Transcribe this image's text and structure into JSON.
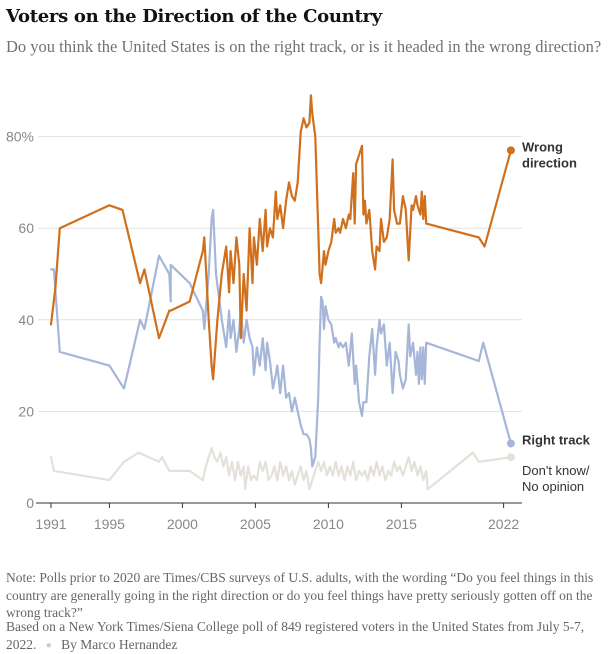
{
  "header": {
    "title": "Voters on the Direction of the Country",
    "subtitle": "Do you think the United States is on the right track, or is it headed in the wrong direction?"
  },
  "footer": {
    "note": "Note: Polls prior to 2020 are Times/CBS surveys of U.S. adults, with the wording “Do you feel things in this country are generally going in the right direction or do you feel things have pretty seriously gotten off on the wrong track?”",
    "source": "Based on a New York Times/Siena College poll of 849 registered voters in the United States from July 5-7, 2022.",
    "byline": "By Marco Hernandez",
    "separator": "●"
  },
  "chart_data": {
    "type": "line",
    "title": "Voters on the Direction of the Country",
    "xlabel": "",
    "ylabel": "",
    "xlim": [
      1990.0,
      2023.0
    ],
    "ylim": [
      0,
      80
    ],
    "grid": true,
    "x_ticks": [
      1991,
      1995,
      2000,
      2005,
      2010,
      2015,
      2022
    ],
    "x_tick_labels": [
      "1991",
      "1995",
      "2000",
      "2005",
      "2010",
      "2015",
      "2022"
    ],
    "y_ticks": [
      0,
      20,
      40,
      60,
      80
    ],
    "y_tick_labels": [
      "0",
      "20",
      "40",
      "60",
      "80%"
    ],
    "legend": "direct labels at right end of each line",
    "series": [
      {
        "name": "Wrong direction",
        "label_lines": [
          "Wrong",
          "direction"
        ],
        "color": "#d0701d",
        "end_value": 77,
        "points": [
          [
            1991.0,
            39
          ],
          [
            1991.3,
            47
          ],
          [
            1991.6,
            60
          ],
          [
            1995.0,
            65
          ],
          [
            1995.9,
            64
          ],
          [
            1997.1,
            48
          ],
          [
            1997.4,
            51
          ],
          [
            1998.4,
            36
          ],
          [
            1999.1,
            42
          ],
          [
            1999.2,
            42
          ],
          [
            2000.5,
            44
          ],
          [
            2001.4,
            55
          ],
          [
            2001.5,
            58
          ],
          [
            2001.8,
            40
          ],
          [
            2002.0,
            30
          ],
          [
            2002.1,
            27
          ],
          [
            2002.4,
            40
          ],
          [
            2002.7,
            50
          ],
          [
            2003.0,
            56
          ],
          [
            2003.2,
            46
          ],
          [
            2003.3,
            55
          ],
          [
            2003.5,
            48
          ],
          [
            2003.7,
            58
          ],
          [
            2003.9,
            52
          ],
          [
            2004.0,
            36
          ],
          [
            2004.2,
            50
          ],
          [
            2004.4,
            42
          ],
          [
            2004.6,
            60
          ],
          [
            2004.8,
            48
          ],
          [
            2004.9,
            58
          ],
          [
            2005.1,
            52
          ],
          [
            2005.3,
            62
          ],
          [
            2005.5,
            55
          ],
          [
            2005.7,
            64
          ],
          [
            2005.8,
            56
          ],
          [
            2006.0,
            60
          ],
          [
            2006.2,
            58
          ],
          [
            2006.4,
            68
          ],
          [
            2006.5,
            62
          ],
          [
            2006.7,
            65
          ],
          [
            2006.9,
            60
          ],
          [
            2007.1,
            66
          ],
          [
            2007.3,
            70
          ],
          [
            2007.5,
            67
          ],
          [
            2007.7,
            66
          ],
          [
            2007.9,
            70
          ],
          [
            2008.1,
            81
          ],
          [
            2008.3,
            84
          ],
          [
            2008.5,
            82
          ],
          [
            2008.7,
            83
          ],
          [
            2008.8,
            89
          ],
          [
            2008.9,
            85
          ],
          [
            2009.1,
            80
          ],
          [
            2009.3,
            60
          ],
          [
            2009.4,
            50
          ],
          [
            2009.5,
            48
          ],
          [
            2009.7,
            55
          ],
          [
            2009.8,
            52
          ],
          [
            2010.0,
            55
          ],
          [
            2010.2,
            57
          ],
          [
            2010.4,
            62
          ],
          [
            2010.5,
            59
          ],
          [
            2010.7,
            60
          ],
          [
            2010.8,
            59
          ],
          [
            2011.0,
            62
          ],
          [
            2011.2,
            60
          ],
          [
            2011.4,
            63
          ],
          [
            2011.5,
            62
          ],
          [
            2011.7,
            72
          ],
          [
            2011.8,
            61
          ],
          [
            2011.9,
            74
          ],
          [
            2012.1,
            76
          ],
          [
            2012.3,
            78
          ],
          [
            2012.4,
            63
          ],
          [
            2012.5,
            66
          ],
          [
            2012.6,
            61
          ],
          [
            2012.8,
            64
          ],
          [
            2013.0,
            55
          ],
          [
            2013.2,
            51
          ],
          [
            2013.3,
            56
          ],
          [
            2013.5,
            55
          ],
          [
            2013.6,
            62
          ],
          [
            2013.8,
            57
          ],
          [
            2014.0,
            58
          ],
          [
            2014.2,
            62
          ],
          [
            2014.4,
            75
          ],
          [
            2014.5,
            64
          ],
          [
            2014.7,
            61
          ],
          [
            2014.9,
            61
          ],
          [
            2015.1,
            67
          ],
          [
            2015.3,
            64
          ],
          [
            2015.5,
            53
          ],
          [
            2015.7,
            65
          ],
          [
            2015.8,
            64
          ],
          [
            2016.0,
            67
          ],
          [
            2016.1,
            65
          ],
          [
            2016.2,
            64
          ],
          [
            2016.3,
            63
          ],
          [
            2016.4,
            68
          ],
          [
            2016.5,
            62
          ],
          [
            2016.6,
            67
          ],
          [
            2016.7,
            61
          ],
          [
            2020.3,
            58
          ],
          [
            2020.7,
            56
          ],
          [
            2022.5,
            77
          ]
        ]
      },
      {
        "name": "Right track",
        "label_lines": [
          "Right track"
        ],
        "color": "#a6b6d9",
        "end_value": 13,
        "points": [
          [
            1991.0,
            51
          ],
          [
            1991.2,
            51
          ],
          [
            1991.6,
            33
          ],
          [
            1995.0,
            30
          ],
          [
            1996.0,
            25
          ],
          [
            1997.1,
            40
          ],
          [
            1997.4,
            38
          ],
          [
            1998.4,
            54
          ],
          [
            1999.1,
            50
          ],
          [
            1999.2,
            44
          ],
          [
            1999.2,
            52
          ],
          [
            2000.5,
            48
          ],
          [
            2001.4,
            42
          ],
          [
            2001.5,
            38
          ],
          [
            2001.8,
            50
          ],
          [
            2002.0,
            62
          ],
          [
            2002.1,
            64
          ],
          [
            2002.3,
            50
          ],
          [
            2002.5,
            45
          ],
          [
            2002.7,
            40
          ],
          [
            2003.0,
            34
          ],
          [
            2003.2,
            42
          ],
          [
            2003.3,
            36
          ],
          [
            2003.5,
            40
          ],
          [
            2003.7,
            33
          ],
          [
            2003.9,
            38
          ],
          [
            2004.0,
            42
          ],
          [
            2004.2,
            35
          ],
          [
            2004.4,
            40
          ],
          [
            2004.6,
            36
          ],
          [
            2004.8,
            34
          ],
          [
            2004.9,
            28
          ],
          [
            2005.1,
            34
          ],
          [
            2005.3,
            30
          ],
          [
            2005.5,
            36
          ],
          [
            2005.7,
            29
          ],
          [
            2005.8,
            35
          ],
          [
            2006.0,
            31
          ],
          [
            2006.2,
            25
          ],
          [
            2006.4,
            28
          ],
          [
            2006.5,
            30
          ],
          [
            2006.7,
            24
          ],
          [
            2006.9,
            30
          ],
          [
            2007.1,
            23
          ],
          [
            2007.3,
            24
          ],
          [
            2007.5,
            20
          ],
          [
            2007.7,
            23
          ],
          [
            2007.9,
            20
          ],
          [
            2008.1,
            17
          ],
          [
            2008.3,
            15
          ],
          [
            2008.5,
            15
          ],
          [
            2008.7,
            14
          ],
          [
            2008.8,
            12
          ],
          [
            2008.9,
            8
          ],
          [
            2009.1,
            10
          ],
          [
            2009.3,
            23
          ],
          [
            2009.4,
            35
          ],
          [
            2009.5,
            45
          ],
          [
            2009.6,
            44
          ],
          [
            2009.7,
            38
          ],
          [
            2009.8,
            43
          ],
          [
            2010.0,
            40
          ],
          [
            2010.2,
            39
          ],
          [
            2010.4,
            35
          ],
          [
            2010.5,
            36
          ],
          [
            2010.7,
            34
          ],
          [
            2010.8,
            35
          ],
          [
            2011.0,
            34
          ],
          [
            2011.2,
            35
          ],
          [
            2011.4,
            30
          ],
          [
            2011.6,
            37
          ],
          [
            2011.8,
            26
          ],
          [
            2011.9,
            30
          ],
          [
            2012.1,
            22
          ],
          [
            2012.3,
            19
          ],
          [
            2012.4,
            22
          ],
          [
            2012.6,
            22
          ],
          [
            2012.8,
            32
          ],
          [
            2013.0,
            38
          ],
          [
            2013.2,
            28
          ],
          [
            2013.3,
            34
          ],
          [
            2013.5,
            40
          ],
          [
            2013.6,
            37
          ],
          [
            2013.8,
            39
          ],
          [
            2014.0,
            30
          ],
          [
            2014.2,
            35
          ],
          [
            2014.4,
            24
          ],
          [
            2014.6,
            33
          ],
          [
            2014.8,
            31
          ],
          [
            2014.9,
            28
          ],
          [
            2015.1,
            25
          ],
          [
            2015.3,
            27
          ],
          [
            2015.5,
            39
          ],
          [
            2015.6,
            32
          ],
          [
            2015.8,
            35
          ],
          [
            2016.0,
            28
          ],
          [
            2016.1,
            33
          ],
          [
            2016.2,
            26
          ],
          [
            2016.3,
            34
          ],
          [
            2016.4,
            27
          ],
          [
            2016.5,
            34
          ],
          [
            2016.6,
            26
          ],
          [
            2016.7,
            35
          ],
          [
            2020.3,
            31
          ],
          [
            2020.6,
            35
          ],
          [
            2022.5,
            13
          ]
        ]
      },
      {
        "name": "Don't know/No opinion",
        "label_lines": [
          "Don't know/",
          "No opinion"
        ],
        "color": "#e3e1d8",
        "end_value": 10,
        "points": [
          [
            1991.0,
            10
          ],
          [
            1991.2,
            7
          ],
          [
            1995.0,
            5
          ],
          [
            1996.0,
            9
          ],
          [
            1997.0,
            11
          ],
          [
            1998.4,
            9
          ],
          [
            1998.6,
            10
          ],
          [
            1999.1,
            7
          ],
          [
            2000.5,
            7
          ],
          [
            2001.4,
            5
          ],
          [
            2001.6,
            8
          ],
          [
            2002.0,
            12
          ],
          [
            2002.2,
            10
          ],
          [
            2002.4,
            9
          ],
          [
            2002.6,
            11
          ],
          [
            2002.8,
            8
          ],
          [
            2003.0,
            10
          ],
          [
            2003.2,
            6
          ],
          [
            2003.4,
            9
          ],
          [
            2003.6,
            5
          ],
          [
            2003.8,
            9
          ],
          [
            2004.0,
            6
          ],
          [
            2004.2,
            8
          ],
          [
            2004.3,
            3
          ],
          [
            2004.5,
            8
          ],
          [
            2004.7,
            5
          ],
          [
            2004.9,
            6
          ],
          [
            2005.1,
            5
          ],
          [
            2005.3,
            9
          ],
          [
            2005.5,
            7
          ],
          [
            2005.7,
            9
          ],
          [
            2005.9,
            5
          ],
          [
            2006.1,
            6
          ],
          [
            2006.3,
            8
          ],
          [
            2006.5,
            5
          ],
          [
            2006.7,
            9
          ],
          [
            2006.9,
            6
          ],
          [
            2007.1,
            8
          ],
          [
            2007.3,
            5
          ],
          [
            2007.5,
            7
          ],
          [
            2007.7,
            4
          ],
          [
            2007.9,
            6
          ],
          [
            2008.1,
            8
          ],
          [
            2008.3,
            5
          ],
          [
            2008.5,
            7
          ],
          [
            2008.7,
            3
          ],
          [
            2008.9,
            5
          ],
          [
            2009.1,
            7
          ],
          [
            2009.3,
            9
          ],
          [
            2009.5,
            7
          ],
          [
            2009.7,
            9
          ],
          [
            2009.9,
            6
          ],
          [
            2010.1,
            8
          ],
          [
            2010.3,
            6
          ],
          [
            2010.5,
            9
          ],
          [
            2010.7,
            6
          ],
          [
            2010.9,
            8
          ],
          [
            2011.1,
            5
          ],
          [
            2011.3,
            8
          ],
          [
            2011.5,
            6
          ],
          [
            2011.7,
            9
          ],
          [
            2011.9,
            5
          ],
          [
            2012.1,
            7
          ],
          [
            2012.3,
            6
          ],
          [
            2012.5,
            7
          ],
          [
            2012.7,
            5
          ],
          [
            2012.9,
            8
          ],
          [
            2013.1,
            6
          ],
          [
            2013.3,
            9
          ],
          [
            2013.5,
            6
          ],
          [
            2013.7,
            8
          ],
          [
            2013.9,
            5
          ],
          [
            2014.1,
            7
          ],
          [
            2014.3,
            6
          ],
          [
            2014.5,
            9
          ],
          [
            2014.7,
            7
          ],
          [
            2014.9,
            8
          ],
          [
            2015.1,
            6
          ],
          [
            2015.3,
            8
          ],
          [
            2015.5,
            10
          ],
          [
            2015.7,
            7
          ],
          [
            2015.9,
            9
          ],
          [
            2016.1,
            6
          ],
          [
            2016.3,
            8
          ],
          [
            2016.5,
            5
          ],
          [
            2016.7,
            7
          ],
          [
            2016.8,
            3
          ],
          [
            2019.9,
            11
          ],
          [
            2020.3,
            9
          ],
          [
            2022.5,
            10
          ]
        ]
      }
    ]
  }
}
